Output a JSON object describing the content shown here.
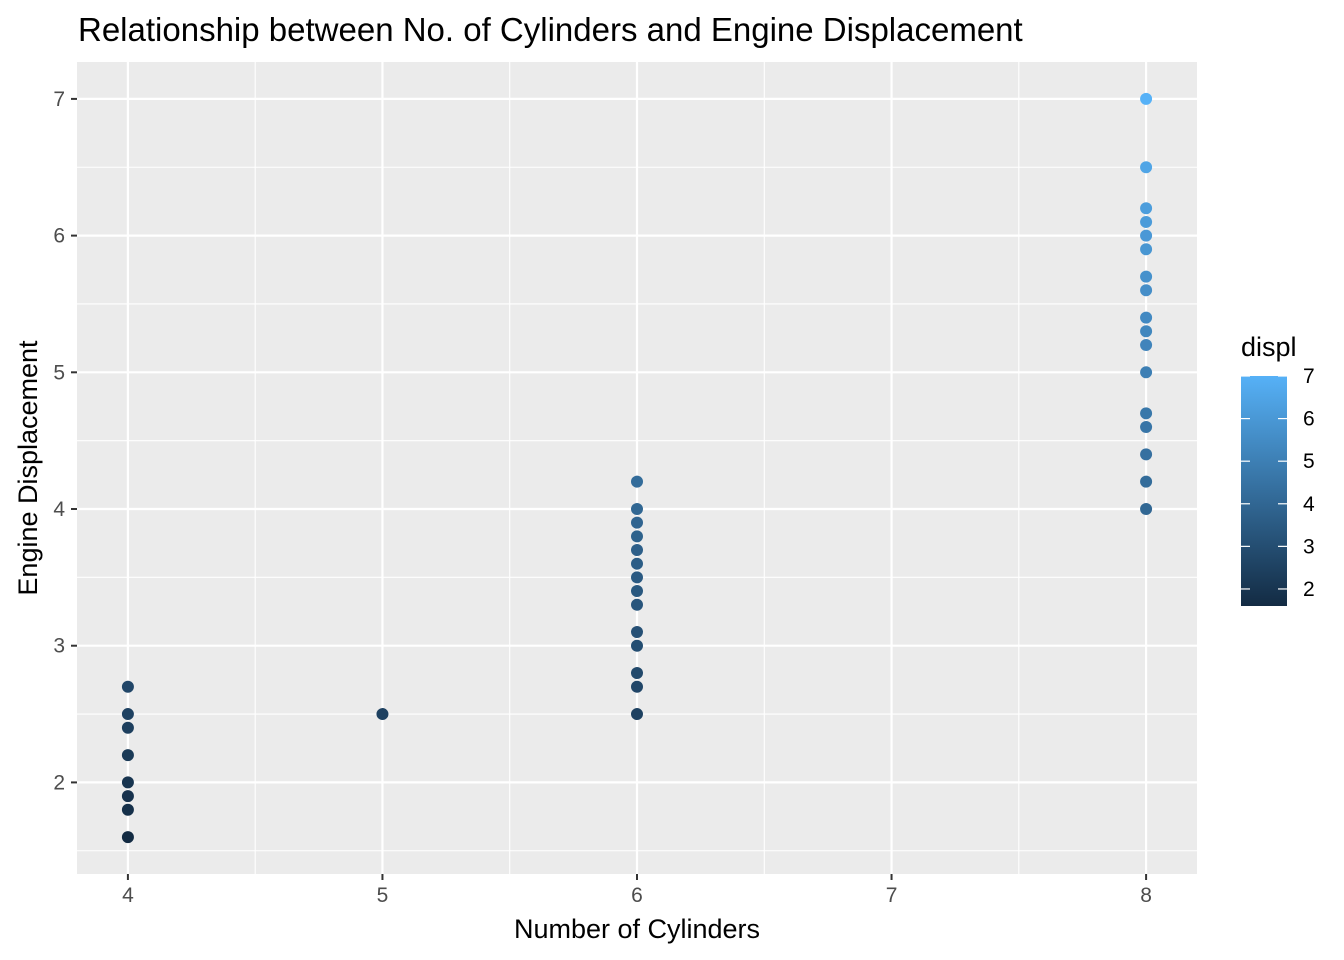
{
  "chart_data": {
    "type": "scatter",
    "title": "Relationship between No. of Cylinders and Engine Displacement",
    "xlabel": "Number of Cylinders",
    "ylabel": "Engine Displacement",
    "xlim": [
      3.8,
      8.2
    ],
    "ylim": [
      1.33,
      7.27
    ],
    "x_ticks": [
      4,
      5,
      6,
      7,
      8
    ],
    "x_tick_labels": [
      "4",
      "5",
      "6",
      "7",
      "8"
    ],
    "y_ticks": [
      2,
      3,
      4,
      5,
      6,
      7
    ],
    "y_tick_labels": [
      "2",
      "3",
      "4",
      "5",
      "6",
      "7"
    ],
    "grid": true,
    "panel_background": "#ebebeb",
    "color_scale": {
      "title": "displ",
      "low": 1.6,
      "high": 7.0,
      "low_color": "#132b43",
      "high_color": "#56b1f7",
      "breaks": [
        2,
        3,
        4,
        5,
        6,
        7
      ],
      "break_labels": [
        "2",
        "3",
        "4",
        "5",
        "6",
        "7"
      ],
      "position": "right"
    },
    "points": [
      {
        "x": 4,
        "y": 1.6
      },
      {
        "x": 4,
        "y": 1.8
      },
      {
        "x": 4,
        "y": 1.9
      },
      {
        "x": 4,
        "y": 2.0
      },
      {
        "x": 4,
        "y": 2.2
      },
      {
        "x": 4,
        "y": 2.4
      },
      {
        "x": 4,
        "y": 2.5
      },
      {
        "x": 4,
        "y": 2.7
      },
      {
        "x": 5,
        "y": 2.5
      },
      {
        "x": 6,
        "y": 2.5
      },
      {
        "x": 6,
        "y": 2.7
      },
      {
        "x": 6,
        "y": 2.8
      },
      {
        "x": 6,
        "y": 3.0
      },
      {
        "x": 6,
        "y": 3.1
      },
      {
        "x": 6,
        "y": 3.3
      },
      {
        "x": 6,
        "y": 3.4
      },
      {
        "x": 6,
        "y": 3.5
      },
      {
        "x": 6,
        "y": 3.6
      },
      {
        "x": 6,
        "y": 3.7
      },
      {
        "x": 6,
        "y": 3.8
      },
      {
        "x": 6,
        "y": 3.9
      },
      {
        "x": 6,
        "y": 4.0
      },
      {
        "x": 6,
        "y": 4.2
      },
      {
        "x": 8,
        "y": 4.0
      },
      {
        "x": 8,
        "y": 4.2
      },
      {
        "x": 8,
        "y": 4.4
      },
      {
        "x": 8,
        "y": 4.6
      },
      {
        "x": 8,
        "y": 4.7
      },
      {
        "x": 8,
        "y": 5.0
      },
      {
        "x": 8,
        "y": 5.2
      },
      {
        "x": 8,
        "y": 5.3
      },
      {
        "x": 8,
        "y": 5.4
      },
      {
        "x": 8,
        "y": 5.6
      },
      {
        "x": 8,
        "y": 5.7
      },
      {
        "x": 8,
        "y": 5.9
      },
      {
        "x": 8,
        "y": 6.0
      },
      {
        "x": 8,
        "y": 6.1
      },
      {
        "x": 8,
        "y": 6.2
      },
      {
        "x": 8,
        "y": 6.5
      },
      {
        "x": 8,
        "y": 7.0
      }
    ]
  }
}
